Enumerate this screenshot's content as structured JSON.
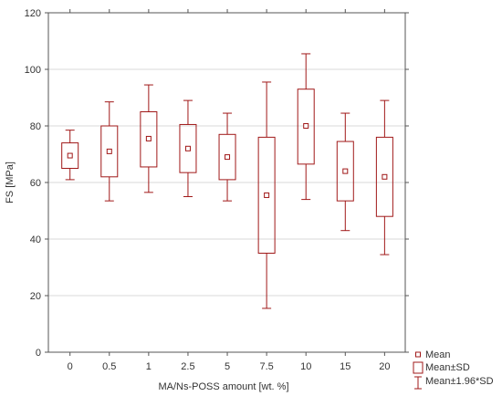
{
  "chart_data": {
    "type": "boxplot",
    "xlabel": "MA/Ns-POSS amount [wt. %]",
    "ylabel": "FS [MPa]",
    "ylim": [
      0,
      120
    ],
    "yticks": [
      0,
      20,
      40,
      60,
      80,
      100,
      120
    ],
    "grid": true,
    "legend_position": "bottom-right",
    "color": "#a01818",
    "categories": [
      "0",
      "0.5",
      "1",
      "2.5",
      "5",
      "7.5",
      "10",
      "15",
      "20"
    ],
    "mean": [
      69.5,
      71.0,
      75.5,
      72.0,
      69.0,
      55.5,
      80.0,
      64.0,
      62.0
    ],
    "mean_minus_sd": [
      65.0,
      62.0,
      65.5,
      63.5,
      61.0,
      35.0,
      66.5,
      53.5,
      48.0
    ],
    "mean_plus_sd": [
      74.0,
      80.0,
      85.0,
      80.5,
      77.0,
      76.0,
      93.0,
      74.5,
      76.0
    ],
    "mean_minus_196sd": [
      61.0,
      53.5,
      56.5,
      55.0,
      53.5,
      15.5,
      54.0,
      43.0,
      34.5
    ],
    "mean_plus_196sd": [
      78.5,
      88.5,
      94.5,
      89.0,
      84.5,
      95.5,
      105.5,
      84.5,
      89.0
    ],
    "legend": [
      "Mean",
      "Mean±SD",
      "Mean±1.96*SD"
    ]
  }
}
